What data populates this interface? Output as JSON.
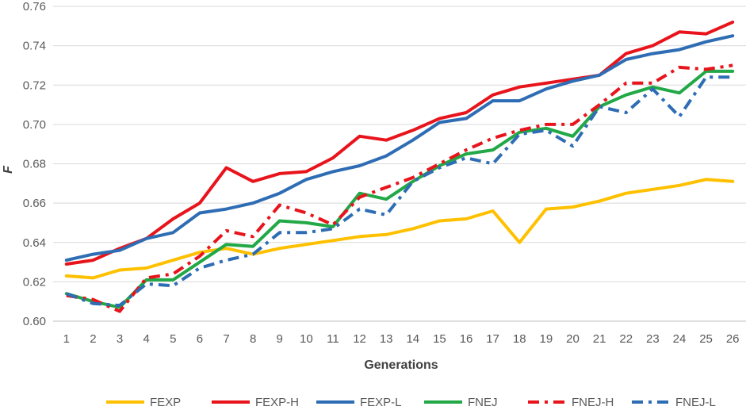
{
  "chart_data": {
    "type": "line",
    "title": "",
    "xlabel": "Generations",
    "ylabel": "F",
    "ylim": [
      0.6,
      0.76
    ],
    "yticks": [
      "0.60",
      "0.62",
      "0.64",
      "0.66",
      "0.68",
      "0.70",
      "0.72",
      "0.74",
      "0.76"
    ],
    "grid": true,
    "legend": "bottom",
    "categories": [
      "1",
      "2",
      "3",
      "4",
      "5",
      "6",
      "7",
      "8",
      "9",
      "10",
      "11",
      "12",
      "13",
      "14",
      "15",
      "16",
      "17",
      "18",
      "19",
      "20",
      "21",
      "22",
      "23",
      "24",
      "25",
      "26"
    ],
    "series": [
      {
        "name": "FEXP",
        "color": "#FFC000",
        "dash": "solid",
        "values": [
          0.623,
          0.622,
          0.626,
          0.627,
          0.631,
          0.635,
          0.637,
          0.634,
          0.637,
          0.639,
          0.641,
          0.643,
          0.644,
          0.647,
          0.651,
          0.652,
          0.656,
          0.64,
          0.657,
          0.658,
          0.661,
          0.665,
          0.667,
          0.669,
          0.672,
          0.671
        ]
      },
      {
        "name": "FEXP-H",
        "color": "#E8141C",
        "dash": "solid",
        "values": [
          0.629,
          0.631,
          0.637,
          0.642,
          0.652,
          0.66,
          0.678,
          0.671,
          0.675,
          0.676,
          0.683,
          0.694,
          0.692,
          0.697,
          0.703,
          0.706,
          0.715,
          0.719,
          0.721,
          0.723,
          0.725,
          0.736,
          0.74,
          0.747,
          0.746,
          0.752
        ]
      },
      {
        "name": "FEXP-L",
        "color": "#2E6DB4",
        "dash": "solid",
        "values": [
          0.631,
          0.634,
          0.636,
          0.642,
          0.645,
          0.655,
          0.657,
          0.66,
          0.665,
          0.672,
          0.676,
          0.679,
          0.684,
          0.692,
          0.701,
          0.703,
          0.712,
          0.712,
          0.718,
          0.722,
          0.725,
          0.733,
          0.736,
          0.738,
          0.742,
          0.745
        ]
      },
      {
        "name": "FNEJ",
        "color": "#22A846",
        "dash": "solid",
        "values": [
          0.614,
          0.61,
          0.607,
          0.621,
          0.621,
          0.63,
          0.639,
          0.638,
          0.651,
          0.65,
          0.648,
          0.665,
          0.662,
          0.671,
          0.679,
          0.685,
          0.687,
          0.696,
          0.698,
          0.694,
          0.709,
          0.715,
          0.719,
          0.716,
          0.727,
          0.727
        ]
      },
      {
        "name": "FNEJ-H",
        "color": "#E8141C",
        "dash": "dashdot",
        "values": [
          0.613,
          0.611,
          0.605,
          0.622,
          0.624,
          0.633,
          0.646,
          0.643,
          0.659,
          0.655,
          0.649,
          0.663,
          0.668,
          0.673,
          0.68,
          0.687,
          0.693,
          0.697,
          0.7,
          0.7,
          0.71,
          0.721,
          0.721,
          0.729,
          0.728,
          0.73
        ]
      },
      {
        "name": "FNEJ-L",
        "color": "#2E6DB4",
        "dash": "dashdot",
        "values": [
          0.614,
          0.609,
          0.608,
          0.619,
          0.618,
          0.627,
          0.631,
          0.634,
          0.645,
          0.645,
          0.647,
          0.657,
          0.654,
          0.671,
          0.678,
          0.683,
          0.68,
          0.695,
          0.697,
          0.689,
          0.709,
          0.706,
          0.718,
          0.704,
          0.724,
          0.724
        ]
      }
    ]
  }
}
